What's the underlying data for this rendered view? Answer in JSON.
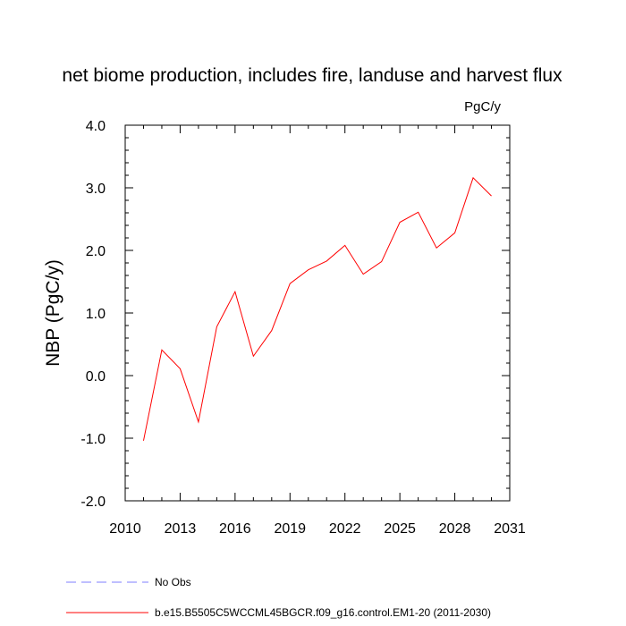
{
  "chart_data": {
    "type": "line",
    "title": "net biome production, includes fire, landuse and harvest flux",
    "units_label": "PgC/y",
    "ylabel": "NBP  (PgC/y)",
    "xlabel": "",
    "xlim": [
      2010,
      2031
    ],
    "ylim": [
      -2.0,
      4.0
    ],
    "x_ticks": [
      "2010",
      "2013",
      "2016",
      "2019",
      "2022",
      "2025",
      "2028",
      "2031"
    ],
    "y_ticks": [
      "4.0",
      "3.0",
      "2.0",
      "1.0",
      "0.0",
      "-1.0",
      "-2.0"
    ],
    "grid": false,
    "legend_position": "bottom-left",
    "series": [
      {
        "name": "b.e15.B5505C5WCCML45BGCR.f09_g16.control.EM1-20 (2011-2030)",
        "color": "#ff0000",
        "line_style": "solid",
        "x": [
          2011,
          2012,
          2013,
          2014,
          2015,
          2016,
          2017,
          2018,
          2019,
          2020,
          2021,
          2022,
          2023,
          2024,
          2025,
          2026,
          2027,
          2028,
          2029,
          2030
        ],
        "y": [
          -1.04,
          0.41,
          0.11,
          -0.74,
          0.78,
          1.34,
          0.31,
          0.72,
          1.47,
          1.69,
          1.83,
          2.08,
          1.62,
          1.82,
          2.45,
          2.61,
          2.04,
          2.28,
          3.16,
          2.87
        ]
      },
      {
        "name": "No Obs",
        "color": "#7f7fff",
        "line_style": "dashed",
        "x": [],
        "y": []
      }
    ]
  }
}
